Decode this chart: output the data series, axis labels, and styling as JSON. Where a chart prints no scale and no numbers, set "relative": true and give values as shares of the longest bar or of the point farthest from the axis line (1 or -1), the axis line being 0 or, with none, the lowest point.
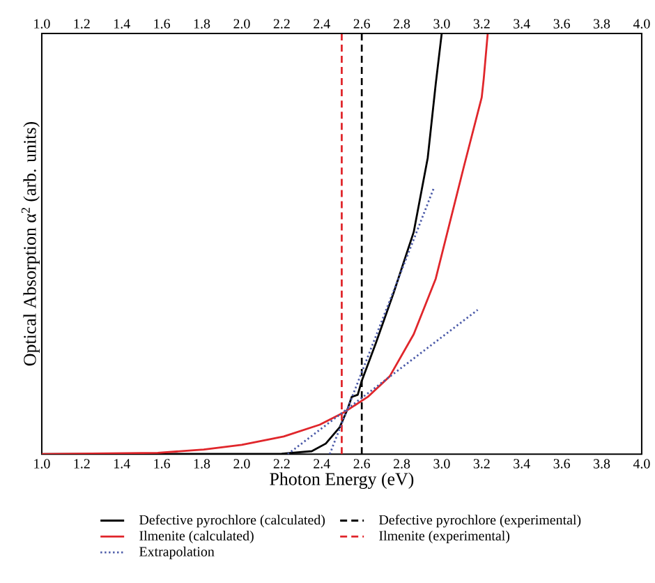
{
  "chart_data": {
    "type": "line",
    "xlabel": "Photon Energy (eV)",
    "ylabel": "Optical Absorption α$^{2}$ (arb. units)",
    "relative": true,
    "legend": "bottom",
    "line_style": "solid",
    "xlim": [
      1,
      4
    ],
    "xticks": [
      {
        "value": 1,
        "label": "1.0"
      },
      {
        "value": 1.2,
        "label": "1.2"
      },
      {
        "value": 1.4,
        "label": "1.4"
      },
      {
        "value": 1.6,
        "label": "1.6"
      },
      {
        "value": 1.8,
        "label": "1.8"
      },
      {
        "value": 2,
        "label": "2.0"
      },
      {
        "value": 2.2,
        "label": "2.2"
      },
      {
        "value": 2.4,
        "label": "2.4"
      },
      {
        "value": 2.6,
        "label": "2.6"
      },
      {
        "value": 2.8,
        "label": "2.8"
      },
      {
        "value": 3,
        "label": "3.0"
      },
      {
        "value": 3.2,
        "label": "3.2"
      },
      {
        "value": 3.4,
        "label": "3.4"
      },
      {
        "value": 3.6,
        "label": "3.6"
      },
      {
        "value": 3.8,
        "label": "3.8"
      },
      {
        "value": 4,
        "label": "4.0"
      }
    ],
    "x2lim": [
      1,
      4
    ],
    "x2ticks": [
      {
        "value": 1,
        "label": "1.0"
      },
      {
        "value": 1.2,
        "label": "1.2"
      },
      {
        "value": 1.4,
        "label": "1.4"
      },
      {
        "value": 1.6,
        "label": "1.6"
      },
      {
        "value": 1.8,
        "label": "1.8"
      },
      {
        "value": 2,
        "label": "2.0"
      },
      {
        "value": 2.2,
        "label": "2.2"
      },
      {
        "value": 2.4,
        "label": "2.4"
      },
      {
        "value": 2.6,
        "label": "2.6"
      },
      {
        "value": 2.8,
        "label": "2.8"
      },
      {
        "value": 3,
        "label": "3.0"
      },
      {
        "value": 3.2,
        "label": "3.2"
      },
      {
        "value": 3.4,
        "label": "3.4"
      },
      {
        "value": 3.6,
        "label": "3.6"
      },
      {
        "value": 3.8,
        "label": "3.8"
      },
      {
        "value": 4,
        "label": "4.0"
      }
    ],
    "ref_lines": [
      {
        "axis": "x",
        "value": 2.6,
        "label": "Defective pyrochlore (experimental)",
        "color": "#000000",
        "line_style": "dashed"
      },
      {
        "axis": "x",
        "value": 2.5,
        "label": "Ilmenite (experimental)",
        "color": "#e0262b",
        "line_style": "dashed"
      }
    ],
    "series": [
      {
        "name": "Defective pyrochlore (calculated)",
        "color": "#000000",
        "x": [
          1.0,
          2.2,
          2.35,
          2.42,
          2.49,
          2.53,
          2.55,
          2.58,
          2.6,
          2.67,
          2.76,
          2.86,
          2.93,
          2.97,
          3.0
        ],
        "values": [
          0,
          0.001,
          0.007,
          0.025,
          0.064,
          0.108,
          0.136,
          0.141,
          0.174,
          0.263,
          0.384,
          0.528,
          0.704,
          0.88,
          1.0
        ]
      },
      {
        "name": "Ilmenite (calculated)",
        "color": "#e0262b",
        "x": [
          1.0,
          1.58,
          1.81,
          2.0,
          2.21,
          2.39,
          2.51,
          2.63,
          2.74,
          2.86,
          2.97,
          3.11,
          3.2,
          3.21,
          3.23
        ],
        "values": [
          0,
          0.003,
          0.011,
          0.022,
          0.042,
          0.07,
          0.099,
          0.136,
          0.185,
          0.285,
          0.417,
          0.682,
          0.848,
          0.892,
          1.0
        ]
      },
      {
        "name": "Extrapolation",
        "color": "#4b5aa8",
        "line_style": "dotted",
        "x": [
          2.44,
          2.96
        ],
        "values": [
          0,
          0.632
        ]
      },
      {
        "color": "#4b5aa8",
        "line_style": "dotted",
        "x": [
          2.23,
          3.18
        ],
        "values": [
          0,
          0.343
        ]
      }
    ]
  }
}
